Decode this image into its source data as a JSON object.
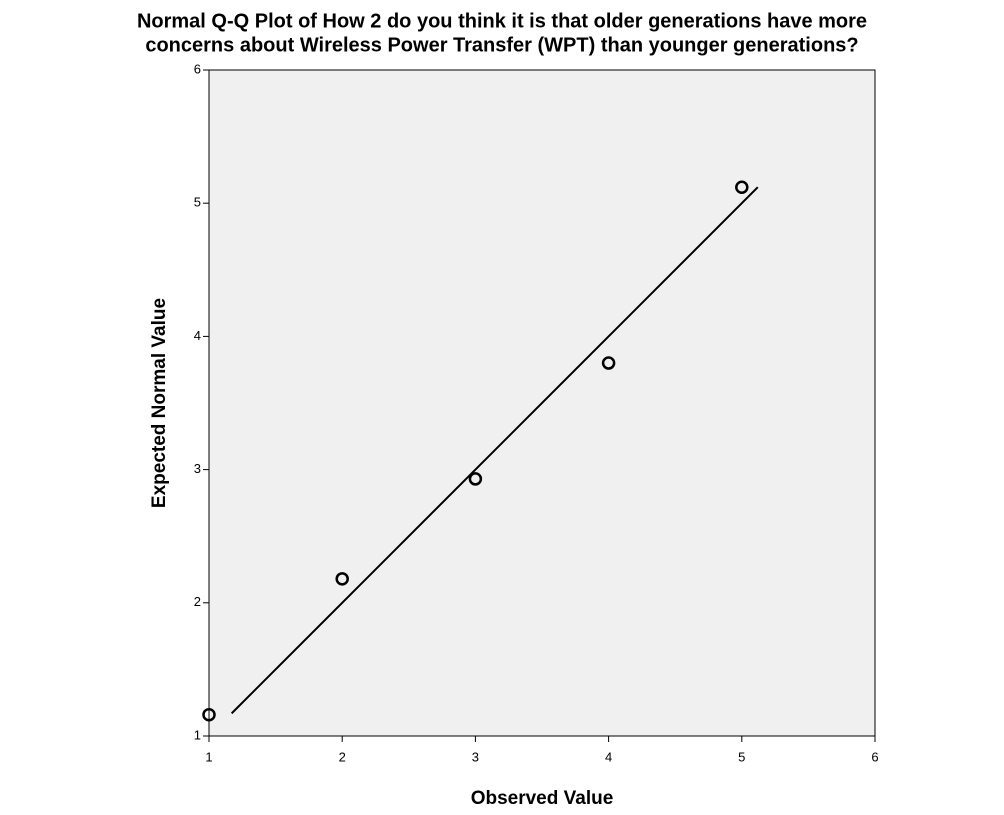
{
  "chart_data": {
    "type": "scatter",
    "title": [
      "Normal Q-Q Plot of How 2 do you think it is that older generations have more",
      "concerns about Wireless Power Transfer (WPT) than younger generations?"
    ],
    "x_label": "Observed Value",
    "y_label": "Expected Normal Value",
    "xlim": [
      1,
      6
    ],
    "ylim": [
      1,
      6
    ],
    "xticks": [
      1,
      2,
      3,
      4,
      5,
      6
    ],
    "yticks": [
      1,
      2,
      3,
      4,
      5,
      6
    ],
    "points": {
      "x": [
        1,
        2,
        3,
        4,
        5
      ],
      "y": [
        1.16,
        2.18,
        2.93,
        3.8,
        5.12
      ],
      "color": "#000000"
    },
    "reference_line": {
      "x": [
        1.17,
        5.12
      ],
      "y": [
        1.17,
        5.12
      ],
      "color": "#000000"
    },
    "plot_background": "#f0f0f0"
  }
}
